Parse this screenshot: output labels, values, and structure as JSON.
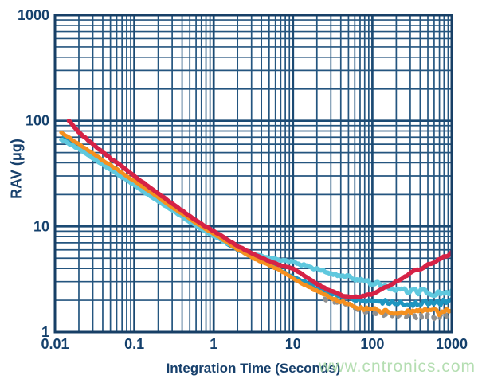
{
  "chart": {
    "xlabel": "Integration Time (Seconds)",
    "ylabel": "RAV (μg)",
    "x_ticks": [
      {
        "value": 0.01,
        "label": "0.01"
      },
      {
        "value": 0.1,
        "label": "0.1"
      },
      {
        "value": 1,
        "label": "1"
      },
      {
        "value": 10,
        "label": "10"
      },
      {
        "value": 100,
        "label": "100"
      },
      {
        "value": 1000,
        "label": "1000"
      }
    ],
    "y_ticks": [
      {
        "value": 1,
        "label": "1"
      },
      {
        "value": 10,
        "label": "10"
      },
      {
        "value": 100,
        "label": "100"
      },
      {
        "value": 1000,
        "label": "1000"
      }
    ],
    "colors": {
      "grid_minor": "#24557f",
      "grid_major": "#1b4a73",
      "border": "#173f66",
      "tick_text": "#14406c",
      "axis_title": "#17406c"
    }
  },
  "watermark": {
    "text": "www.cntronics.com",
    "color": "#a3d7a0"
  },
  "chart_data": {
    "type": "line",
    "x_scale": "log",
    "y_scale": "log",
    "xlim": [
      0.01,
      1000
    ],
    "ylim": [
      1,
      1000
    ],
    "grid": true,
    "legend": "none",
    "title": "",
    "xlabel": "Integration Time (Seconds)",
    "ylabel": "RAV (μg)",
    "series": [
      {
        "name": "gray-trace",
        "color": "#909090",
        "stroke_width": 5,
        "dash": "5 16",
        "noise": {
          "start": 1.2,
          "base": 1.2,
          "slope": 1.6,
          "max": 4.0
        },
        "points": [
          [
            25,
            2.05
          ],
          [
            50,
            1.8
          ],
          [
            70,
            1.62
          ],
          [
            100,
            1.5
          ],
          [
            150,
            1.45
          ],
          [
            200,
            1.4
          ],
          [
            300,
            1.4
          ],
          [
            500,
            1.45
          ],
          [
            700,
            1.38
          ],
          [
            1000,
            1.45
          ]
        ]
      },
      {
        "name": "teal-blue-trace",
        "color": "#1e95c0",
        "stroke_width": 5,
        "dash": "",
        "noise": {
          "start": 0.8,
          "base": 0.7,
          "slope": 2.2,
          "max": 4.8
        },
        "points": [
          [
            0.013,
            71
          ],
          [
            0.02,
            57
          ],
          [
            0.05,
            36
          ],
          [
            0.1,
            25.5
          ],
          [
            0.2,
            18
          ],
          [
            0.5,
            11.3
          ],
          [
            1,
            8.2
          ],
          [
            2,
            6.0
          ],
          [
            3,
            5.2
          ],
          [
            5,
            4.4
          ],
          [
            10,
            3.3
          ],
          [
            15,
            2.9
          ],
          [
            20,
            2.6
          ],
          [
            30,
            2.3
          ],
          [
            50,
            2.1
          ],
          [
            70,
            2.0
          ],
          [
            100,
            1.95
          ],
          [
            150,
            1.92
          ],
          [
            200,
            1.9
          ],
          [
            300,
            1.85
          ],
          [
            500,
            1.9
          ],
          [
            700,
            1.85
          ],
          [
            1000,
            1.92
          ]
        ]
      },
      {
        "name": "light-cyan-trace",
        "color": "#5fc8de",
        "stroke_width": 5.5,
        "dash": "",
        "noise": {
          "start": 0.8,
          "base": 0.8,
          "slope": 2.2,
          "max": 5.0
        },
        "points": [
          [
            0.012,
            66
          ],
          [
            0.02,
            54
          ],
          [
            0.03,
            44
          ],
          [
            0.05,
            34.5
          ],
          [
            0.1,
            24.5
          ],
          [
            0.2,
            17.2
          ],
          [
            0.3,
            14.2
          ],
          [
            0.5,
            11
          ],
          [
            1,
            8.1
          ],
          [
            2,
            6.2
          ],
          [
            3,
            5.5
          ],
          [
            5,
            5.0
          ],
          [
            7,
            4.8
          ],
          [
            10,
            4.6
          ],
          [
            15,
            4.2
          ],
          [
            20,
            3.9
          ],
          [
            30,
            3.6
          ],
          [
            50,
            3.3
          ],
          [
            70,
            3.1
          ],
          [
            100,
            2.9
          ],
          [
            150,
            2.7
          ],
          [
            200,
            2.55
          ],
          [
            300,
            2.45
          ],
          [
            500,
            2.4
          ],
          [
            700,
            2.35
          ],
          [
            1000,
            2.45
          ]
        ]
      },
      {
        "name": "orange-trace",
        "color": "#f5901f",
        "stroke_width": 5,
        "dash": "",
        "noise": {
          "start": 0.8,
          "base": 0.7,
          "slope": 2.0,
          "max": 4.5
        },
        "points": [
          [
            0.012,
            78
          ],
          [
            0.02,
            60
          ],
          [
            0.03,
            49
          ],
          [
            0.05,
            38
          ],
          [
            0.1,
            27
          ],
          [
            0.2,
            18.8
          ],
          [
            0.3,
            15.2
          ],
          [
            0.5,
            11.8
          ],
          [
            1,
            8.5
          ],
          [
            2,
            6.1
          ],
          [
            3,
            5.1
          ],
          [
            5,
            4.3
          ],
          [
            7,
            3.8
          ],
          [
            10,
            3.2
          ],
          [
            15,
            2.75
          ],
          [
            20,
            2.45
          ],
          [
            30,
            2.1
          ],
          [
            50,
            1.85
          ],
          [
            70,
            1.7
          ],
          [
            100,
            1.62
          ],
          [
            150,
            1.55
          ],
          [
            200,
            1.5
          ],
          [
            300,
            1.52
          ],
          [
            500,
            1.6
          ],
          [
            700,
            1.55
          ],
          [
            1000,
            1.62
          ]
        ]
      },
      {
        "name": "red-trace",
        "color": "#d62246",
        "stroke_width": 5.5,
        "dash": "",
        "noise": {
          "start": 1.0,
          "base": 0.6,
          "slope": 0.5,
          "max": 1.8
        },
        "points": [
          [
            0.015,
            100
          ],
          [
            0.02,
            78
          ],
          [
            0.03,
            60
          ],
          [
            0.05,
            44
          ],
          [
            0.07,
            37
          ],
          [
            0.1,
            30
          ],
          [
            0.15,
            24
          ],
          [
            0.2,
            20.5
          ],
          [
            0.3,
            16.5
          ],
          [
            0.5,
            12.5
          ],
          [
            0.7,
            10.6
          ],
          [
            1,
            9.0
          ],
          [
            1.5,
            7.5
          ],
          [
            2,
            6.5
          ],
          [
            3,
            5.6
          ],
          [
            5,
            4.7
          ],
          [
            7,
            4.3
          ],
          [
            10,
            4.0
          ],
          [
            15,
            3.3
          ],
          [
            20,
            2.85
          ],
          [
            30,
            2.45
          ],
          [
            40,
            2.25
          ],
          [
            50,
            2.15
          ],
          [
            70,
            2.15
          ],
          [
            100,
            2.3
          ],
          [
            150,
            2.65
          ],
          [
            200,
            3.0
          ],
          [
            300,
            3.6
          ],
          [
            500,
            4.3
          ],
          [
            700,
            4.9
          ],
          [
            1000,
            5.6
          ]
        ]
      }
    ]
  }
}
